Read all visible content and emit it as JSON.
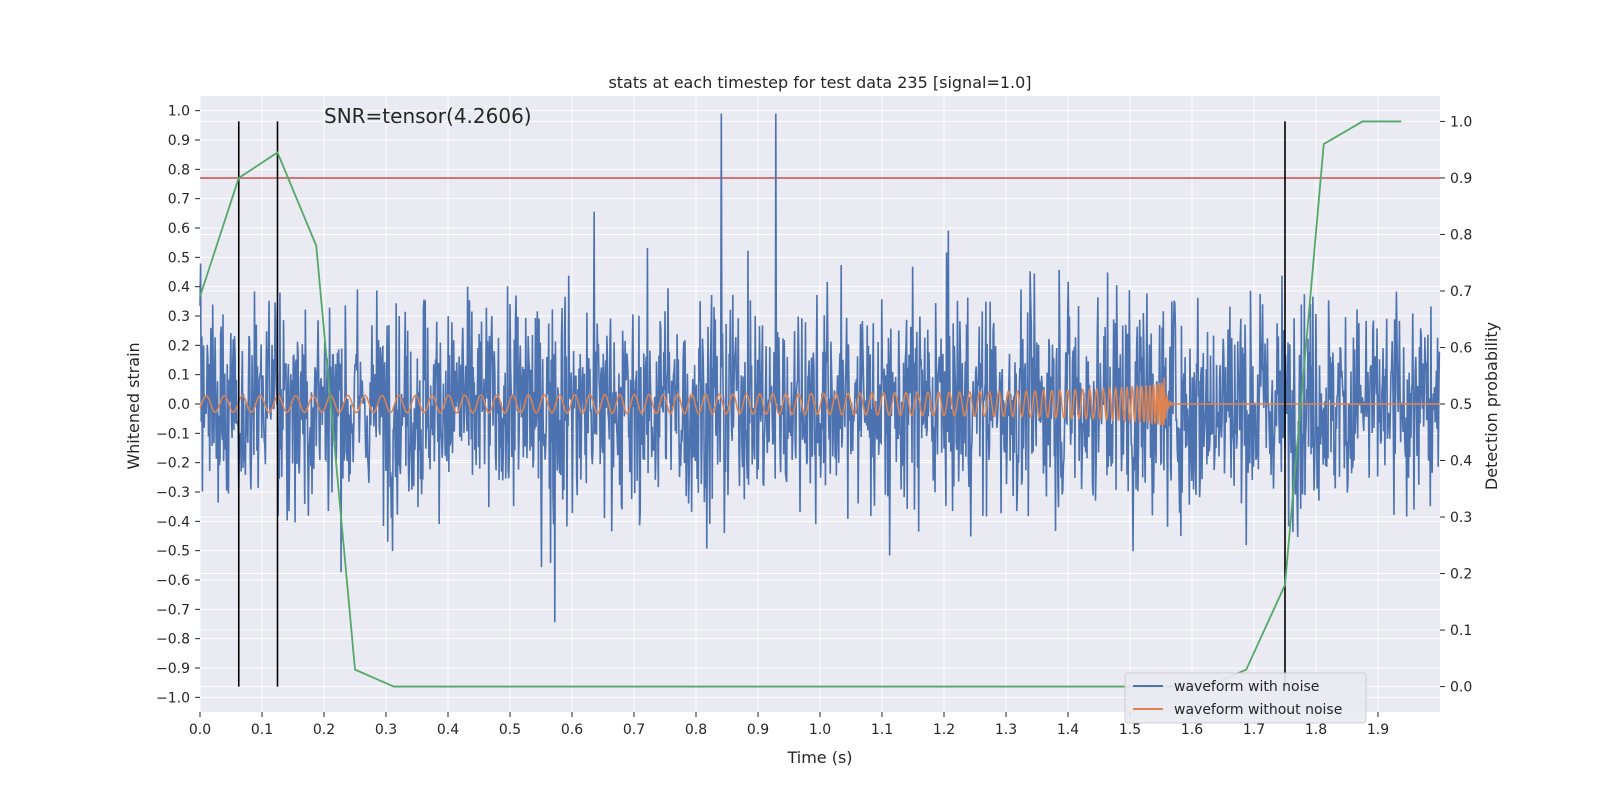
{
  "chart_data": {
    "type": "line",
    "title": "stats at each timestep for test data 235 [signal=1.0]",
    "annotation": "SNR=tensor(4.2606)",
    "xlabel": "Time (s)",
    "ylabel": "Whitened strain",
    "y2label": "Detection probability",
    "xlim": [
      0.0,
      2.0
    ],
    "ylim": [
      -1.05,
      1.05
    ],
    "y2lim": [
      -0.045,
      1.045
    ],
    "xticks": [
      "0.0",
      "0.1",
      "0.2",
      "0.3",
      "0.4",
      "0.5",
      "0.6",
      "0.7",
      "0.8",
      "0.9",
      "1.0",
      "1.1",
      "1.2",
      "1.3",
      "1.4",
      "1.5",
      "1.6",
      "1.7",
      "1.8",
      "1.9"
    ],
    "yticks": [
      "1.0",
      "0.9",
      "0.8",
      "0.7",
      "0.6",
      "0.5",
      "0.4",
      "0.3",
      "0.2",
      "0.1",
      "0.0",
      "−0.1",
      "−0.2",
      "−0.3",
      "−0.4",
      "−0.5",
      "−0.6",
      "−0.7",
      "−0.8",
      "−0.9",
      "−1.0"
    ],
    "y2ticks": [
      "1.0",
      "0.9",
      "0.8",
      "0.7",
      "0.6",
      "0.5",
      "0.4",
      "0.3",
      "0.2",
      "0.1",
      "0.0"
    ],
    "legend": [
      {
        "label": "waveform with noise",
        "color": "#4c72b0"
      },
      {
        "label": "waveform without noise",
        "color": "#dd8452"
      }
    ],
    "threshold_line": {
      "y2": 0.9,
      "color": "#c44e52"
    },
    "vertical_markers": [
      0.0625,
      0.125,
      1.75
    ],
    "detection_probability": {
      "color": "#55a868",
      "x": [
        0.0,
        0.0625,
        0.125,
        0.1875,
        0.25,
        0.3125,
        0.375,
        1.625,
        1.6875,
        1.75,
        1.8125,
        1.875,
        1.9375
      ],
      "y": [
        0.69,
        0.9,
        0.945,
        0.78,
        0.03,
        0.0,
        0.0,
        0.0,
        0.03,
        0.18,
        0.96,
        1.0,
        1.0
      ]
    },
    "series": [
      {
        "name": "waveform with noise",
        "color": "#4c72b0",
        "description": "noise-dominated whitened strain, amplitude mostly within ±0.7, peaks near ±1.0"
      },
      {
        "name": "waveform without noise",
        "color": "#dd8452",
        "description": "chirp signal, amplitude ~0.03 growing to ~0.1, merger at ~1.555 s, zero after ~1.6 s"
      }
    ],
    "colors": {
      "axes_bg": "#eaeaf2",
      "grid": "#ffffff",
      "marker_line": "#000000"
    }
  }
}
